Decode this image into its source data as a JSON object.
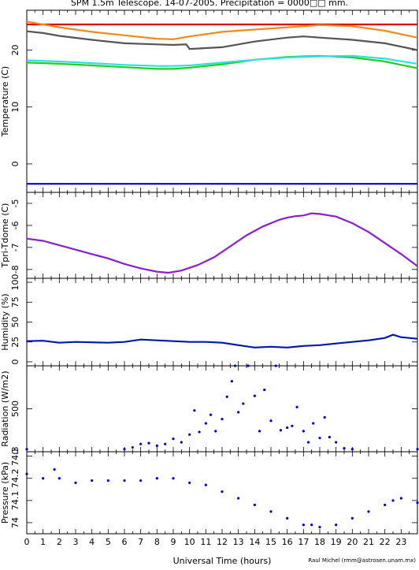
{
  "figure": {
    "title": "SPM 1.5m Telescope. 14-07-2005. Precipitation = 0000□□ mm.",
    "xlabel": "Universal Time (hours)",
    "credit": "Raul Michel (rmm@astrosen.unam.mx)"
  },
  "chart_data": [
    {
      "type": "line",
      "ylabel": "Temperature (C)",
      "xlim": [
        0,
        24
      ],
      "ylim": [
        -5,
        27
      ],
      "yticks": [
        0,
        10,
        20
      ],
      "series": [
        {
          "color": "#e00000",
          "x": [
            0,
            24
          ],
          "y": [
            24.5,
            24.5
          ]
        },
        {
          "color": "#f08a1c",
          "x": [
            0,
            1,
            2,
            4,
            6,
            8,
            9,
            10,
            12,
            14,
            16,
            18,
            20,
            22,
            24
          ],
          "y": [
            25,
            24.5,
            24,
            23.2,
            22.6,
            22,
            21.9,
            22.4,
            23.2,
            23.6,
            24,
            24.4,
            24.2,
            23.4,
            22.2
          ]
        },
        {
          "color": "#555555",
          "x": [
            0,
            1,
            2,
            4,
            6,
            8,
            9,
            9.8,
            10,
            12,
            14,
            16,
            17,
            18,
            20,
            22,
            24
          ],
          "y": [
            23.3,
            23,
            22.5,
            21.8,
            21.2,
            21,
            20.9,
            21,
            20.2,
            20.5,
            21.5,
            22.2,
            22.4,
            22.2,
            21.8,
            21.2,
            20
          ]
        },
        {
          "color": "#20d020",
          "x": [
            0,
            2,
            4,
            6,
            8,
            9,
            10,
            12,
            14,
            16,
            18,
            20,
            22,
            24
          ],
          "y": [
            17.8,
            17.6,
            17.3,
            17,
            16.7,
            16.7,
            16.9,
            17.5,
            18.3,
            18.8,
            19,
            18.7,
            18,
            16.8
          ]
        },
        {
          "color": "#30e0e0",
          "x": [
            0,
            2,
            4,
            6,
            8,
            9,
            10,
            12,
            14,
            16,
            18,
            20,
            22,
            24
          ],
          "y": [
            18.2,
            18,
            17.7,
            17.4,
            17.2,
            17.2,
            17.3,
            17.8,
            18.3,
            18.7,
            18.9,
            19,
            18.5,
            17.6
          ]
        },
        {
          "color": "#0000c8",
          "x": [
            0,
            24
          ],
          "y": [
            -3.5,
            -3.5
          ]
        }
      ]
    },
    {
      "type": "line",
      "ylabel": "Tpri-Tdome (C)",
      "xlim": [
        0,
        24
      ],
      "ylim": [
        -8.4,
        -4.5
      ],
      "yticks": [
        -8,
        -7,
        -6,
        -5
      ],
      "series": [
        {
          "color": "#8a1fd0",
          "x": [
            0,
            1,
            2,
            3,
            4,
            5,
            6,
            7,
            8,
            8.7,
            9.5,
            10.5,
            11.5,
            12.5,
            13.5,
            14.5,
            15.5,
            16,
            16.5,
            17,
            17.5,
            18,
            19,
            20,
            21,
            22,
            23,
            24
          ],
          "y": [
            -6.6,
            -6.7,
            -6.9,
            -7.1,
            -7.3,
            -7.5,
            -7.75,
            -7.95,
            -8.1,
            -8.15,
            -8.05,
            -7.8,
            -7.45,
            -6.95,
            -6.45,
            -6.05,
            -5.75,
            -5.65,
            -5.58,
            -5.55,
            -5.45,
            -5.48,
            -5.6,
            -5.9,
            -6.3,
            -6.8,
            -7.3,
            -7.85
          ]
        }
      ]
    },
    {
      "type": "line",
      "ylabel": "Humidity (%)",
      "xlim": [
        0,
        24
      ],
      "ylim": [
        -5,
        105
      ],
      "yticks": [
        0,
        25,
        50,
        75,
        100
      ],
      "series": [
        {
          "color": "#0018a8",
          "x": [
            0,
            1,
            2,
            3,
            4,
            5,
            6,
            7,
            8,
            9,
            10,
            11,
            12,
            13,
            14,
            15,
            16,
            17,
            18,
            19,
            20,
            21,
            22,
            22.5,
            23,
            24
          ],
          "y": [
            26,
            26.5,
            24,
            25,
            24.5,
            24,
            25,
            28,
            27,
            26,
            25,
            25,
            24,
            21,
            18,
            19,
            18,
            20,
            21,
            23,
            25,
            27,
            30,
            34,
            31,
            29
          ]
        }
      ]
    },
    {
      "type": "scatter",
      "ylabel": "Radiation (W/m2)",
      "xlim": [
        0,
        24
      ],
      "ylim": [
        0,
        1000
      ],
      "yticks": [
        0,
        500
      ],
      "series": [
        {
          "color": "#0000c8",
          "x": [
            0,
            6,
            6.5,
            7,
            7.5,
            8,
            8.5,
            9,
            9.5,
            10,
            10.3,
            10.6,
            11,
            11.3,
            11.6,
            12,
            12.3,
            12.6,
            12.8,
            13,
            13.3,
            13.6,
            14,
            14.3,
            14.6,
            15,
            15.3,
            15.6,
            16,
            16.3,
            16.6,
            17,
            17.3,
            17.6,
            18,
            18.3,
            18.6,
            19,
            19.5,
            20,
            24
          ],
          "y": [
            30,
            30,
            50,
            90,
            100,
            70,
            90,
            150,
            110,
            200,
            480,
            230,
            330,
            430,
            240,
            380,
            640,
            820,
            1000,
            460,
            560,
            1000,
            650,
            240,
            720,
            360,
            1000,
            250,
            280,
            300,
            520,
            240,
            110,
            330,
            160,
            400,
            170,
            110,
            40,
            30,
            30
          ]
        }
      ]
    },
    {
      "type": "scatter",
      "ylabel": "Pressure (kPa)",
      "xlim": [
        0,
        24
      ],
      "ylim": [
        73.95,
        74.32
      ],
      "yticks": [
        74,
        74.1,
        74.2,
        74.3
      ],
      "series": [
        {
          "color": "#0000c8",
          "x": [
            0,
            1,
            1.7,
            2,
            3,
            4,
            5,
            6,
            7,
            8,
            9,
            10,
            11,
            12,
            13,
            14,
            15,
            16,
            17,
            17.5,
            18,
            19,
            20,
            21,
            22,
            22.5,
            23,
            24
          ],
          "y": [
            74.22,
            74.2,
            74.24,
            74.2,
            74.18,
            74.19,
            74.19,
            74.19,
            74.19,
            74.2,
            74.2,
            74.18,
            74.17,
            74.14,
            74.11,
            74.08,
            74.05,
            74.02,
            73.99,
            73.99,
            73.98,
            73.99,
            74.02,
            74.05,
            74.08,
            74.1,
            74.11,
            74.09
          ]
        }
      ]
    }
  ],
  "x_axis": {
    "ticks": [
      "0",
      "1",
      "2",
      "3",
      "4",
      "5",
      "6",
      "7",
      "8",
      "9",
      "10",
      "11",
      "12",
      "13",
      "14",
      "15",
      "16",
      "17",
      "18",
      "19",
      "20",
      "21",
      "22",
      "23"
    ]
  }
}
